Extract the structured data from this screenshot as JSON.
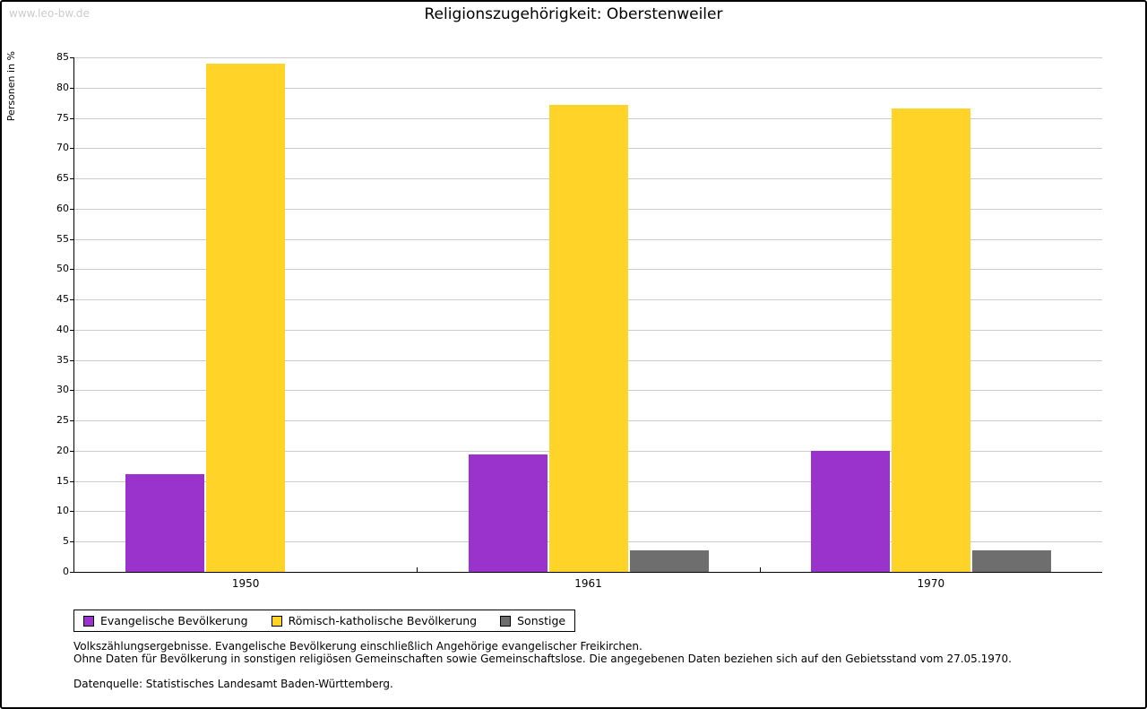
{
  "watermark": "www.leo-bw.de",
  "chart_data": {
    "type": "bar",
    "title": "Religionszugehörigkeit: Oberstenweiler",
    "xlabel": "",
    "ylabel": "Personen in %",
    "categories": [
      "1950",
      "1961",
      "1970"
    ],
    "series": [
      {
        "name": "Evangelische Bevölkerung",
        "color": "#9933cc",
        "values": [
          16.2,
          19.4,
          20.0
        ]
      },
      {
        "name": "Römisch-katholische Bevölkerung",
        "color": "#ffd327",
        "values": [
          84.0,
          77.2,
          76.6
        ]
      },
      {
        "name": "Sonstige",
        "color": "#6e6e6e",
        "values": [
          0.0,
          3.5,
          3.5
        ]
      }
    ],
    "ylim": [
      0,
      85
    ],
    "ytick_step": 5,
    "grid": true,
    "legend_position": "bottom"
  },
  "footnotes": {
    "line1": "Volkszählungsergebnisse. Evangelische Bevölkerung einschließlich Angehörige evangelischer Freikirchen.",
    "line2": "Ohne Daten für Bevölkerung in sonstigen religiösen Gemeinschaften sowie Gemeinschaftslose. Die angegebenen Daten beziehen sich auf den Gebietsstand vom 27.05.1970.",
    "source": "Datenquelle: Statistisches Landesamt Baden-Württemberg."
  }
}
